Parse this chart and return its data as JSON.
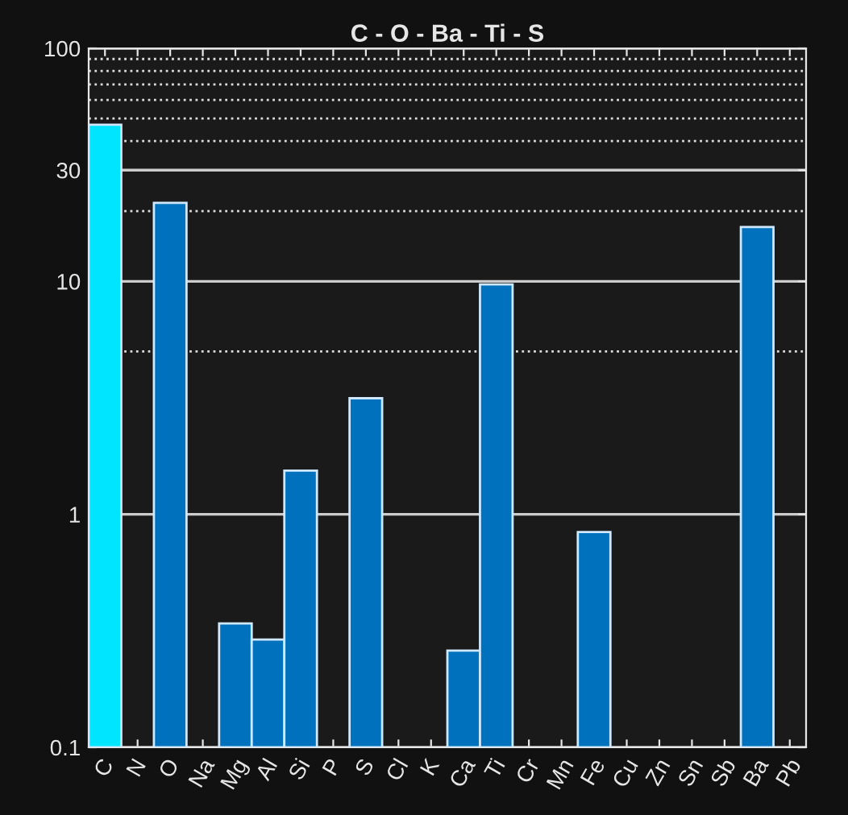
{
  "chart_data": {
    "type": "bar",
    "title": "C - O - Ba - Ti - S",
    "categories": [
      "C",
      "N",
      "O",
      "Na",
      "Mg",
      "Al",
      "Si",
      "P",
      "S",
      "Cl",
      "K",
      "Ca",
      "Ti",
      "Cr",
      "Mn",
      "Fe",
      "Cu",
      "Zn",
      "Sn",
      "Sb",
      "Ba",
      "Pb"
    ],
    "values": [
      47,
      null,
      21.7,
      null,
      0.34,
      0.29,
      1.54,
      null,
      3.15,
      null,
      null,
      0.26,
      9.7,
      null,
      null,
      0.84,
      null,
      null,
      null,
      null,
      17.1,
      null
    ],
    "colors": [
      "#00e5ff",
      "#0072bd",
      "#0072bd",
      "#0072bd",
      "#0072bd",
      "#0072bd",
      "#0072bd",
      "#0072bd",
      "#0072bd",
      "#0072bd",
      "#0072bd",
      "#0072bd",
      "#0072bd",
      "#0072bd",
      "#0072bd",
      "#0072bd",
      "#0072bd",
      "#0072bd",
      "#0072bd",
      "#0072bd",
      "#0072bd",
      "#0072bd"
    ],
    "log": "y",
    "ylim": [
      0.1,
      100
    ],
    "yticks": [
      0.1,
      1,
      10,
      30,
      100
    ],
    "grid": "y",
    "ref_lines": [
      {
        "axis": "y",
        "value": 5,
        "line_style": "dotted",
        "color": "#dddddd"
      },
      {
        "axis": "y",
        "value": 20,
        "line_style": "dotted",
        "color": "#dddddd"
      },
      {
        "axis": "y",
        "value": 40,
        "line_style": "dotted",
        "color": "#dddddd"
      },
      {
        "axis": "y",
        "value": 50,
        "line_style": "dotted",
        "color": "#dddddd"
      },
      {
        "axis": "y",
        "value": 60,
        "line_style": "dotted",
        "color": "#dddddd"
      },
      {
        "axis": "y",
        "value": 70,
        "line_style": "dotted",
        "color": "#dddddd"
      },
      {
        "axis": "y",
        "value": 80,
        "line_style": "dotted",
        "color": "#dddddd"
      },
      {
        "axis": "y",
        "value": 90,
        "line_style": "dotted",
        "color": "#dddddd"
      }
    ]
  }
}
